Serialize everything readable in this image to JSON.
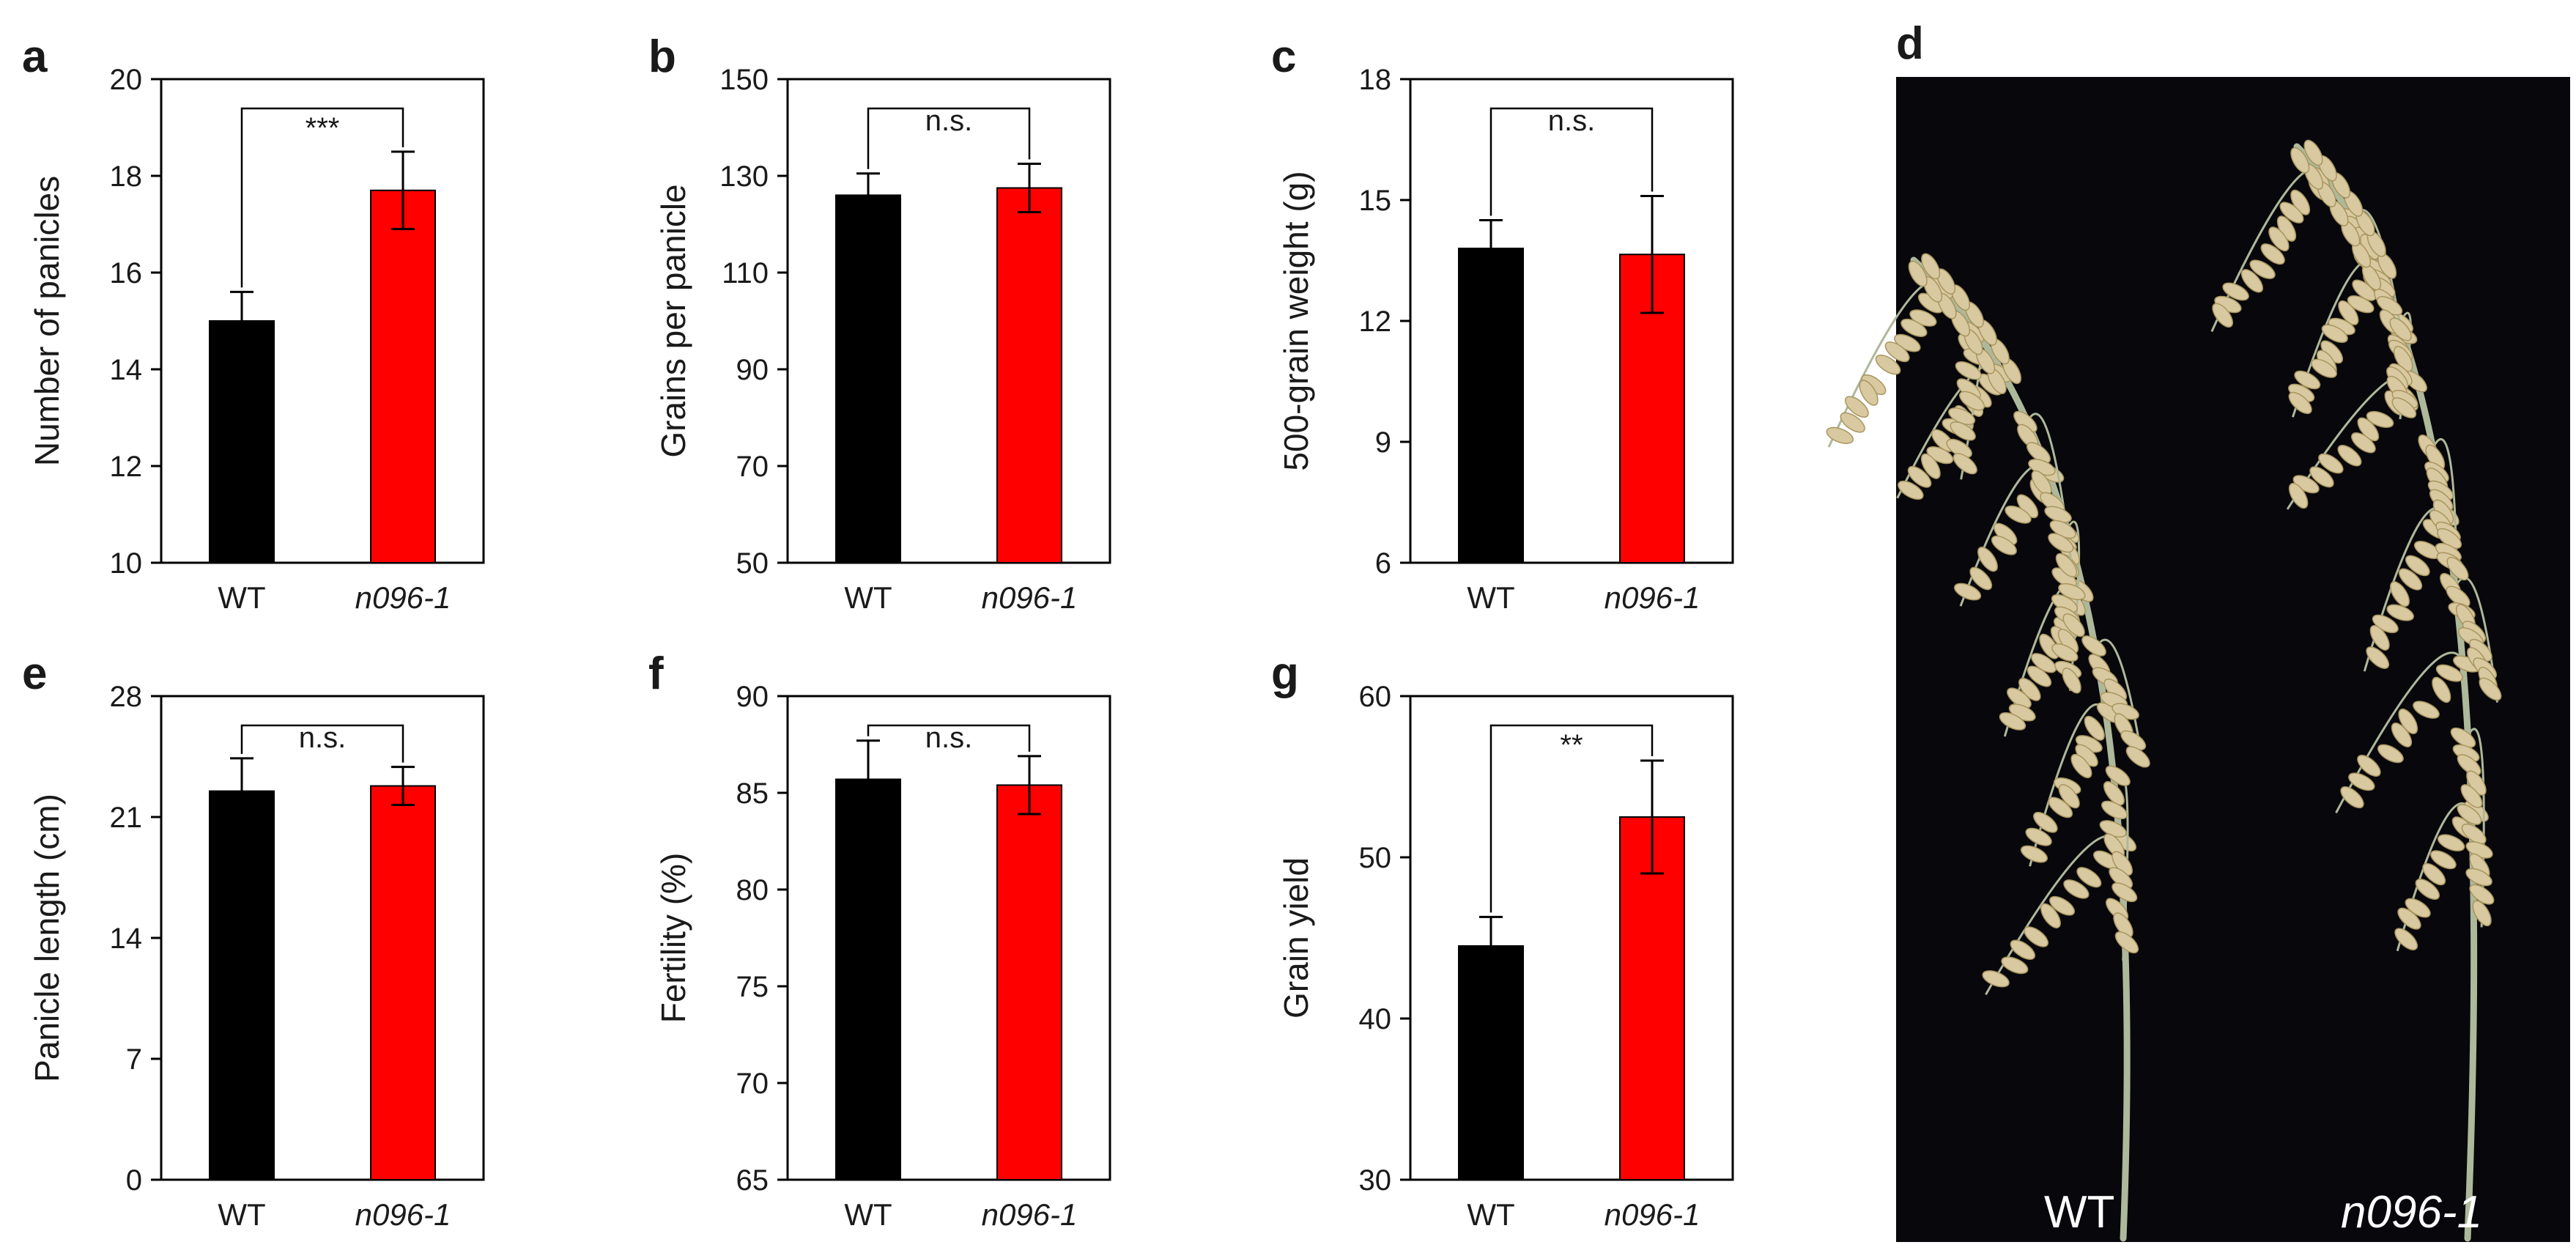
{
  "colors": {
    "wt": "#000000",
    "mutant": "#ff0000",
    "photo_bg": "#07070c",
    "grain": "#d9c9a0",
    "stem": "#aeb89a"
  },
  "chart_data": [
    {
      "id": "a",
      "type": "bar",
      "letter": "a",
      "title": "",
      "xlabel": "",
      "ylabel": "Number of panicles",
      "categories": [
        "WT",
        "n096-1"
      ],
      "category_styles": [
        "normal",
        "italic"
      ],
      "values": [
        15.0,
        17.7
      ],
      "errors": [
        0.6,
        0.8
      ],
      "ylim": [
        10,
        20
      ],
      "yticks": [
        "10",
        "12",
        "14",
        "16",
        "18",
        "20"
      ],
      "grid": false,
      "legend": "none",
      "significance": "***"
    },
    {
      "id": "b",
      "type": "bar",
      "letter": "b",
      "title": "",
      "xlabel": "",
      "ylabel": "Grains per panicle",
      "categories": [
        "WT",
        "n096-1"
      ],
      "category_styles": [
        "normal",
        "italic"
      ],
      "values": [
        126,
        127.5
      ],
      "errors": [
        4.5,
        5.0
      ],
      "ylim": [
        50,
        150
      ],
      "yticks": [
        "50",
        "70",
        "90",
        "110",
        "130",
        "150"
      ],
      "grid": false,
      "legend": "none",
      "significance": "n.s."
    },
    {
      "id": "c",
      "type": "bar",
      "letter": "c",
      "title": "",
      "xlabel": "",
      "ylabel": "500-grain weight (g)",
      "categories": [
        "WT",
        "n096-1"
      ],
      "category_styles": [
        "normal",
        "italic"
      ],
      "values": [
        13.8,
        13.65
      ],
      "errors": [
        0.7,
        1.45
      ],
      "ylim": [
        6,
        18
      ],
      "yticks": [
        "6",
        "9",
        "12",
        "15",
        "18"
      ],
      "grid": false,
      "legend": "none",
      "significance": "n.s."
    },
    {
      "id": "e",
      "type": "bar",
      "letter": "e",
      "title": "",
      "xlabel": "",
      "ylabel": "Panicle length (cm)",
      "categories": [
        "WT",
        "n096-1"
      ],
      "category_styles": [
        "normal",
        "italic"
      ],
      "values": [
        22.5,
        22.8
      ],
      "errors": [
        1.9,
        1.1
      ],
      "ylim": [
        0,
        28
      ],
      "yticks": [
        "0",
        "7",
        "14",
        "21",
        "28"
      ],
      "grid": false,
      "legend": "none",
      "significance": "n.s."
    },
    {
      "id": "f",
      "type": "bar",
      "letter": "f",
      "title": "",
      "xlabel": "",
      "ylabel": "Fertility (%)",
      "categories": [
        "WT",
        "n096-1"
      ],
      "category_styles": [
        "normal",
        "italic"
      ],
      "values": [
        85.7,
        85.4
      ],
      "errors": [
        2.0,
        1.5
      ],
      "ylim": [
        65,
        90
      ],
      "yticks": [
        "65",
        "70",
        "75",
        "80",
        "85",
        "90"
      ],
      "grid": false,
      "legend": "none",
      "significance": "n.s."
    },
    {
      "id": "g",
      "type": "bar",
      "letter": "g",
      "title": "",
      "xlabel": "",
      "ylabel": "Grain yield",
      "categories": [
        "WT",
        "n096-1"
      ],
      "category_styles": [
        "normal",
        "italic"
      ],
      "values": [
        44.5,
        52.5
      ],
      "errors": [
        1.8,
        3.5
      ],
      "ylim": [
        30,
        60
      ],
      "yticks": [
        "30",
        "40",
        "50",
        "60"
      ],
      "grid": false,
      "legend": "none",
      "significance": "**"
    }
  ],
  "photo": {
    "letter": "d",
    "labels": [
      "WT",
      "n096-1"
    ],
    "label_styles": [
      "normal",
      "italic"
    ]
  }
}
